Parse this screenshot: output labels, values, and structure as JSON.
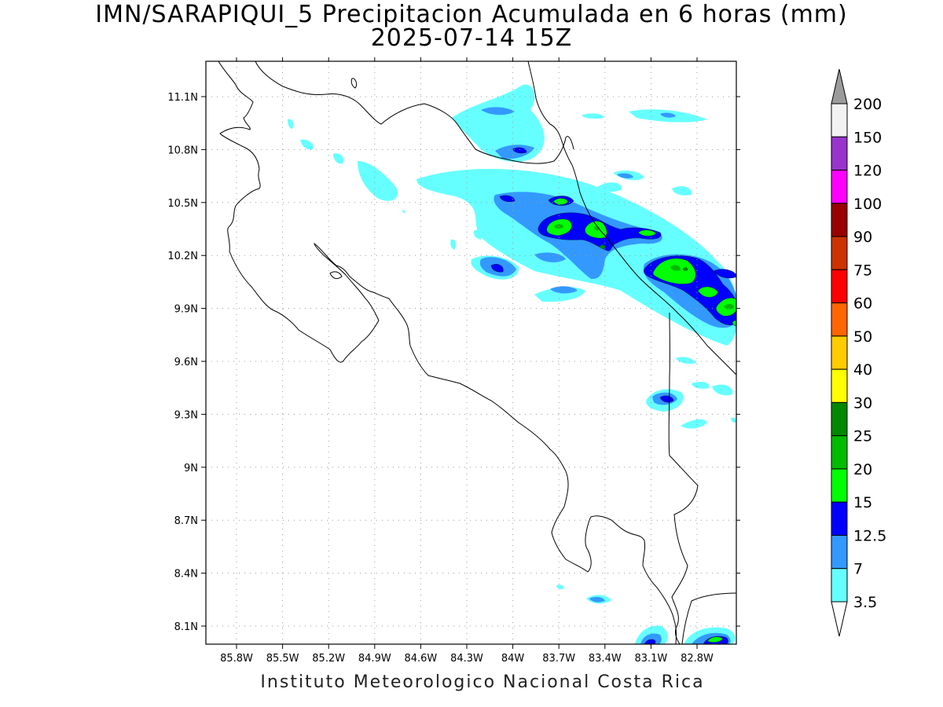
{
  "title_line1": "IMN/SARAPIQUI_5 Precipitacion Acumulada en 6 horas (mm)",
  "title_line2": "2025-07-14 15Z",
  "credit": "Instituto Meteorologico Nacional Costa Rica",
  "map": {
    "lon_ticks": [
      "85.8W",
      "85.5W",
      "85.2W",
      "84.9W",
      "84.6W",
      "84.3W",
      "84W",
      "83.7W",
      "83.4W",
      "83.1W",
      "82.8W"
    ],
    "lat_ticks": [
      "11.1N",
      "10.8N",
      "10.5N",
      "10.2N",
      "9.9N",
      "9.6N",
      "9.3N",
      "9N",
      "8.7N",
      "8.4N",
      "8.1N"
    ],
    "grid": "dotted"
  },
  "colorbar": {
    "labels": [
      "200",
      "150",
      "120",
      "100",
      "90",
      "75",
      "60",
      "50",
      "40",
      "30",
      "25",
      "20",
      "15",
      "12.5",
      "7",
      "3.5"
    ],
    "colors": [
      "#9b9b9b",
      "#f2f2f2",
      "#9933cc",
      "#ff00ff",
      "#990000",
      "#cc3300",
      "#ff0000",
      "#ff6600",
      "#ffcc00",
      "#ffff00",
      "#008800",
      "#00bb00",
      "#00ff00",
      "#0000ff",
      "#3399ff",
      "#66ffff",
      "#ffffff"
    ],
    "overflow_top_color": "#9b9b9b",
    "underflow_bottom_color": "#ffffff"
  },
  "precip_colors": {
    "c3_5": "#66ffff",
    "c7": "#3399ff",
    "c12_5": "#0000ff",
    "c15": "#00ff00",
    "c20": "#00bb00",
    "c25": "#008800"
  }
}
